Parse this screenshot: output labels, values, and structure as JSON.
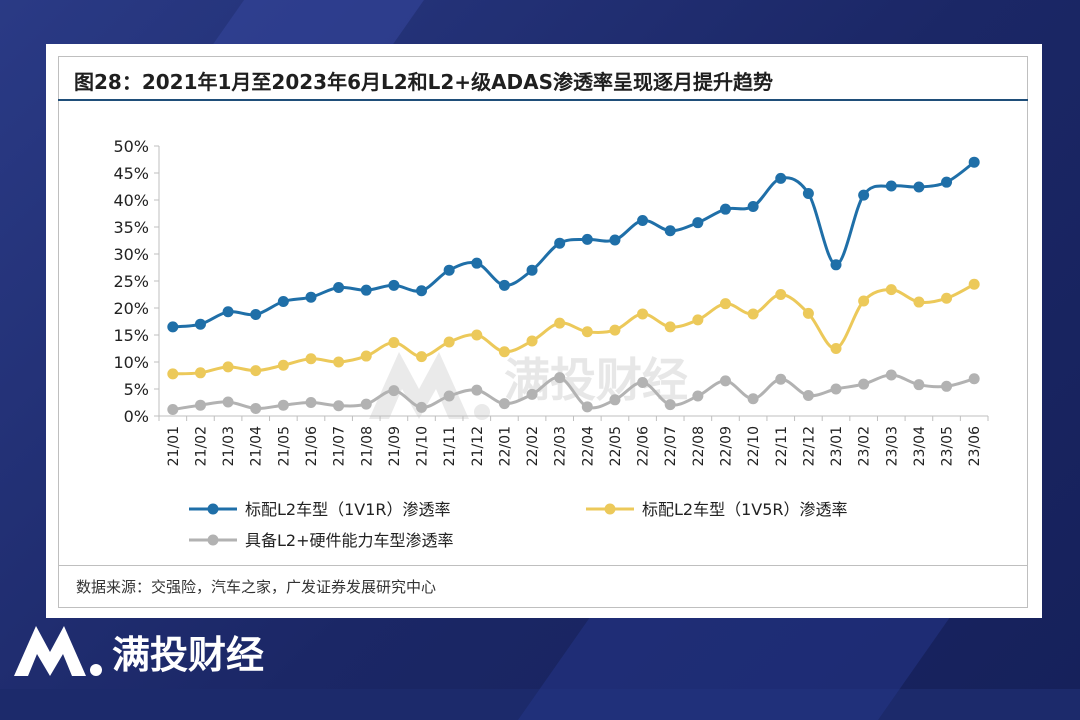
{
  "title": "图28：2021年1月至2023年6月L2和L2+级ADAS渗透率呈现逐月提升趋势",
  "source": "数据来源：交强险，汽车之家，广发证券发展研究中心",
  "watermark": "满投财经",
  "footer": {
    "brand": "满投财经"
  },
  "colors": {
    "series1": "#1f6fa8",
    "series2": "#ecc95a",
    "series3": "#b2b2b2",
    "background": "#1c2a6b"
  },
  "chart_data": {
    "type": "line",
    "title": "图28：2021年1月至2023年6月L2和L2+级ADAS渗透率呈现逐月提升趋势",
    "categories": [
      "21/01",
      "21/02",
      "21/03",
      "21/04",
      "21/05",
      "21/06",
      "21/07",
      "21/08",
      "21/09",
      "21/10",
      "21/11",
      "21/12",
      "22/01",
      "22/02",
      "22/03",
      "22/04",
      "22/05",
      "22/06",
      "22/07",
      "22/08",
      "22/09",
      "22/10",
      "22/11",
      "22/12",
      "23/01",
      "23/02",
      "23/03",
      "23/04",
      "23/05",
      "23/06"
    ],
    "y_ticks": [
      "0%",
      "5%",
      "10%",
      "15%",
      "20%",
      "25%",
      "30%",
      "35%",
      "40%",
      "45%",
      "50%"
    ],
    "ylim": [
      0,
      50
    ],
    "legend_position": "bottom",
    "series": [
      {
        "name": "标配L2车型（1V1R）渗透率",
        "color": "#1f6fa8",
        "values": [
          16.5,
          17,
          19.3,
          18.8,
          21.2,
          22,
          23.8,
          23.3,
          24.2,
          23.2,
          27,
          28.3,
          24.2,
          27,
          32,
          32.7,
          32.6,
          36.2,
          34.3,
          35.8,
          38.3,
          38.8,
          44,
          41.2,
          28,
          40.9,
          42.6,
          42.4,
          43.3,
          47
        ]
      },
      {
        "name": "标配L2车型（1V5R）渗透率",
        "color": "#ecc95a",
        "values": [
          7.8,
          8,
          9.1,
          8.4,
          9.4,
          10.6,
          10,
          11.1,
          13.6,
          11,
          13.7,
          15,
          11.9,
          13.9,
          17.2,
          15.6,
          15.9,
          18.9,
          16.5,
          17.8,
          20.8,
          18.9,
          22.5,
          19,
          12.5,
          21.3,
          23.4,
          21.1,
          21.8,
          24.4
        ]
      },
      {
        "name": "具备L2+硬件能力车型渗透率",
        "color": "#b2b2b2",
        "values": [
          1.2,
          2,
          2.6,
          1.4,
          2,
          2.5,
          1.9,
          2.2,
          4.7,
          1.6,
          3.7,
          4.8,
          2.3,
          4,
          7.1,
          1.7,
          3,
          6.2,
          2.1,
          3.7,
          6.5,
          3.2,
          6.8,
          3.8,
          5,
          5.9,
          7.6,
          5.8,
          5.5,
          6.9
        ]
      }
    ]
  }
}
